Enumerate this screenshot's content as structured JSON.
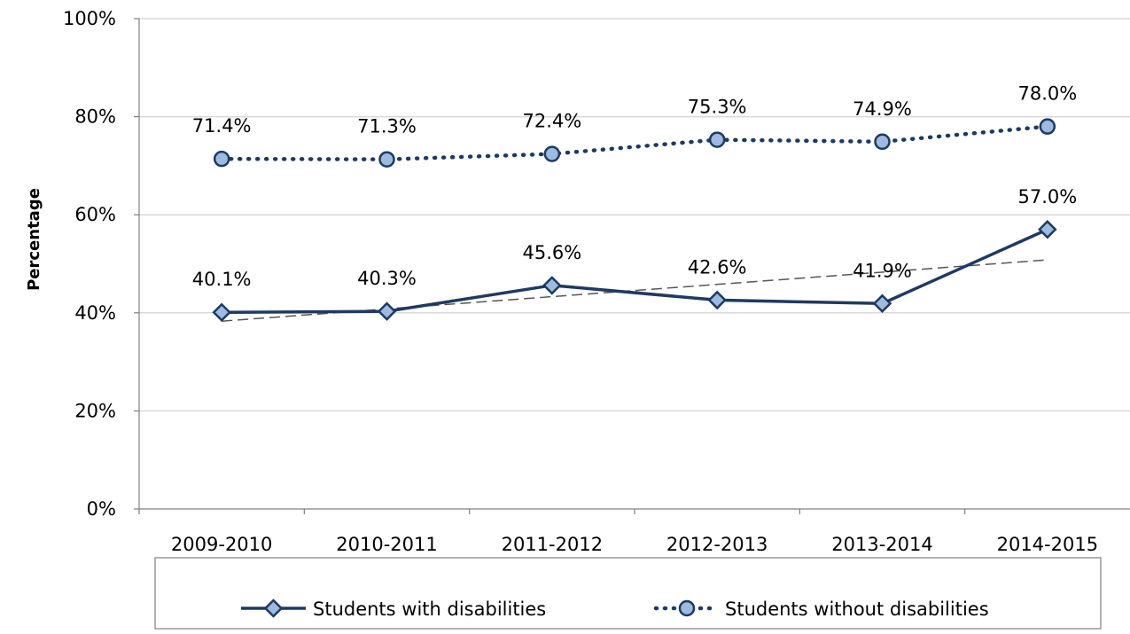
{
  "chart_data": {
    "type": "line",
    "categories": [
      "2009-2010",
      "2010-2011",
      "2011-2012",
      "2012-2013",
      "2013-2014",
      "2014-2015"
    ],
    "series": [
      {
        "name": "Students with disabilities",
        "values": [
          40.1,
          40.3,
          45.6,
          42.6,
          41.9,
          57.0
        ],
        "labels": [
          "40.1%",
          "40.3%",
          "45.6%",
          "42.6%",
          "41.9%",
          "57.0%"
        ],
        "line_style": "solid",
        "marker": "diamond",
        "line_color": "#1f3a60",
        "marker_fill": "#9dbbe0",
        "trendline": {
          "style": "dashed",
          "color": "#555555",
          "start": 38.3,
          "end": 50.8
        }
      },
      {
        "name": "Students without disabilities",
        "values": [
          71.4,
          71.3,
          72.4,
          75.3,
          74.9,
          78.0
        ],
        "labels": [
          "71.4%",
          "71.3%",
          "72.4%",
          "75.3%",
          "74.9%",
          "78.0%"
        ],
        "line_style": "dotted",
        "marker": "circle",
        "line_color": "#1f3a60",
        "marker_fill": "#9dbbe0"
      }
    ],
    "title": "",
    "xlabel": "",
    "ylabel": "Percentage",
    "ylim": [
      0,
      100
    ],
    "yticks": [
      0,
      20,
      40,
      60,
      80,
      100
    ],
    "ytick_labels": [
      "0%",
      "20%",
      "40%",
      "60%",
      "80%",
      "100%"
    ],
    "grid": "horizontal",
    "legend_position": "bottom"
  }
}
